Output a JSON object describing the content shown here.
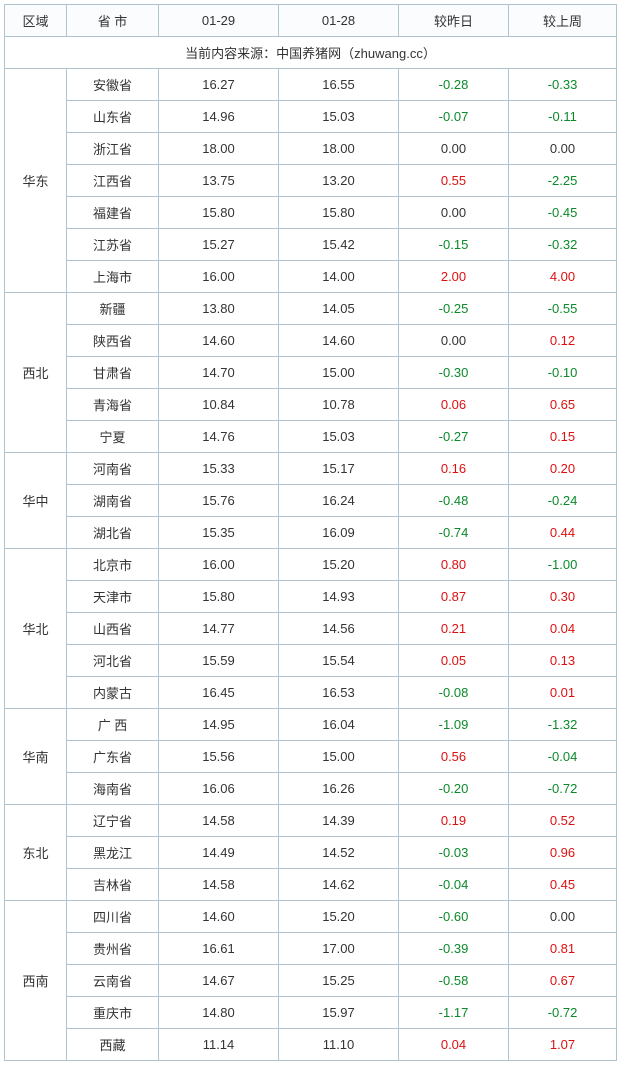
{
  "headers": {
    "region": "区域",
    "province": "省 市",
    "d1": "01-29",
    "d2": "01-28",
    "dy": "较昨日",
    "dw": "较上周"
  },
  "source_text": "当前内容来源：中国养猪网（zhuwang.cc）",
  "colors": {
    "border": "#b0c4d0",
    "neg": "#0a8a2a",
    "pos": "#d11",
    "zero": "#333",
    "text": "#333"
  },
  "regions": [
    {
      "name": "华东",
      "rows": [
        {
          "prov": "安徽省",
          "d1": "16.27",
          "d2": "16.55",
          "dy": "-0.28",
          "dw": "-0.33"
        },
        {
          "prov": "山东省",
          "d1": "14.96",
          "d2": "15.03",
          "dy": "-0.07",
          "dw": "-0.11"
        },
        {
          "prov": "浙江省",
          "d1": "18.00",
          "d2": "18.00",
          "dy": "0.00",
          "dw": "0.00"
        },
        {
          "prov": "江西省",
          "d1": "13.75",
          "d2": "13.20",
          "dy": "0.55",
          "dw": "-2.25"
        },
        {
          "prov": "福建省",
          "d1": "15.80",
          "d2": "15.80",
          "dy": "0.00",
          "dw": "-0.45"
        },
        {
          "prov": "江苏省",
          "d1": "15.27",
          "d2": "15.42",
          "dy": "-0.15",
          "dw": "-0.32"
        },
        {
          "prov": "上海市",
          "d1": "16.00",
          "d2": "14.00",
          "dy": "2.00",
          "dw": "4.00"
        }
      ]
    },
    {
      "name": "西北",
      "rows": [
        {
          "prov": "新疆",
          "d1": "13.80",
          "d2": "14.05",
          "dy": "-0.25",
          "dw": "-0.55"
        },
        {
          "prov": "陕西省",
          "d1": "14.60",
          "d2": "14.60",
          "dy": "0.00",
          "dw": "0.12"
        },
        {
          "prov": "甘肃省",
          "d1": "14.70",
          "d2": "15.00",
          "dy": "-0.30",
          "dw": "-0.10"
        },
        {
          "prov": "青海省",
          "d1": "10.84",
          "d2": "10.78",
          "dy": "0.06",
          "dw": "0.65"
        },
        {
          "prov": "宁夏",
          "d1": "14.76",
          "d2": "15.03",
          "dy": "-0.27",
          "dw": "0.15"
        }
      ]
    },
    {
      "name": "华中",
      "rows": [
        {
          "prov": "河南省",
          "d1": "15.33",
          "d2": "15.17",
          "dy": "0.16",
          "dw": "0.20"
        },
        {
          "prov": "湖南省",
          "d1": "15.76",
          "d2": "16.24",
          "dy": "-0.48",
          "dw": "-0.24"
        },
        {
          "prov": "湖北省",
          "d1": "15.35",
          "d2": "16.09",
          "dy": "-0.74",
          "dw": "0.44"
        }
      ]
    },
    {
      "name": "华北",
      "rows": [
        {
          "prov": "北京市",
          "d1": "16.00",
          "d2": "15.20",
          "dy": "0.80",
          "dw": "-1.00"
        },
        {
          "prov": "天津市",
          "d1": "15.80",
          "d2": "14.93",
          "dy": "0.87",
          "dw": "0.30"
        },
        {
          "prov": "山西省",
          "d1": "14.77",
          "d2": "14.56",
          "dy": "0.21",
          "dw": "0.04"
        },
        {
          "prov": "河北省",
          "d1": "15.59",
          "d2": "15.54",
          "dy": "0.05",
          "dw": "0.13"
        },
        {
          "prov": "内蒙古",
          "d1": "16.45",
          "d2": "16.53",
          "dy": "-0.08",
          "dw": "0.01"
        }
      ]
    },
    {
      "name": "华南",
      "rows": [
        {
          "prov": "广 西",
          "d1": "14.95",
          "d2": "16.04",
          "dy": "-1.09",
          "dw": "-1.32"
        },
        {
          "prov": "广东省",
          "d1": "15.56",
          "d2": "15.00",
          "dy": "0.56",
          "dw": "-0.04"
        },
        {
          "prov": "海南省",
          "d1": "16.06",
          "d2": "16.26",
          "dy": "-0.20",
          "dw": "-0.72"
        }
      ]
    },
    {
      "name": "东北",
      "rows": [
        {
          "prov": "辽宁省",
          "d1": "14.58",
          "d2": "14.39",
          "dy": "0.19",
          "dw": "0.52"
        },
        {
          "prov": "黑龙江",
          "d1": "14.49",
          "d2": "14.52",
          "dy": "-0.03",
          "dw": "0.96"
        },
        {
          "prov": "吉林省",
          "d1": "14.58",
          "d2": "14.62",
          "dy": "-0.04",
          "dw": "0.45"
        }
      ]
    },
    {
      "name": "西南",
      "rows": [
        {
          "prov": "四川省",
          "d1": "14.60",
          "d2": "15.20",
          "dy": "-0.60",
          "dw": "0.00"
        },
        {
          "prov": "贵州省",
          "d1": "16.61",
          "d2": "17.00",
          "dy": "-0.39",
          "dw": "0.81"
        },
        {
          "prov": "云南省",
          "d1": "14.67",
          "d2": "15.25",
          "dy": "-0.58",
          "dw": "0.67"
        },
        {
          "prov": "重庆市",
          "d1": "14.80",
          "d2": "15.97",
          "dy": "-1.17",
          "dw": "-0.72"
        },
        {
          "prov": "西藏",
          "d1": "11.14",
          "d2": "11.10",
          "dy": "0.04",
          "dw": "1.07"
        }
      ]
    }
  ]
}
